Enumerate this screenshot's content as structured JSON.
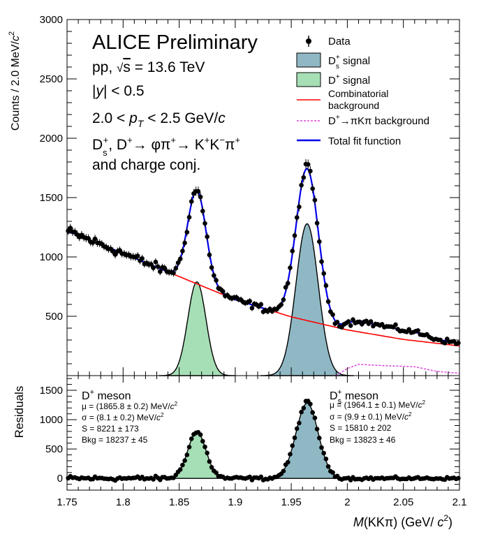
{
  "chart_data": [
    {
      "type": "scatter",
      "panel": "main",
      "ylabel": "Counts / 2.0 MeV/c²",
      "xlim": [
        1.75,
        2.1
      ],
      "ylim": [
        0,
        3000
      ],
      "yticks": [
        500,
        1000,
        1500,
        2000,
        2500,
        3000
      ],
      "annotations": {
        "title": "ALICE Preliminary",
        "collision": "pp, √s = 13.6 TeV",
        "rapidity": "|y| < 0.5",
        "pt": "2.0 < pT < 2.5 GeV/c",
        "decay": "D+s, D+→ φπ+→ K+K−π+",
        "conj": "and charge conj."
      },
      "legend": {
        "position": "top-right",
        "entries": [
          {
            "label": "Data",
            "style": "marker"
          },
          {
            "label": "D+s signal",
            "style": "fill",
            "color": "#8fb8c4"
          },
          {
            "label": "D+ signal",
            "style": "fill",
            "color": "#a6dfb5"
          },
          {
            "label": "Combinatorial background",
            "style": "line",
            "color": "#ff0000"
          },
          {
            "label": "D+→πKπ background",
            "style": "dashed",
            "color": "#dd44dd"
          },
          {
            "label": "Total fit function",
            "style": "line",
            "color": "#0000ee"
          }
        ]
      },
      "model": {
        "background_points": [
          [
            1.75,
            1220
          ],
          [
            1.8,
            1030
          ],
          [
            1.85,
            835
          ],
          [
            1.9,
            640
          ],
          [
            1.95,
            495
          ],
          [
            2.0,
            385
          ],
          [
            2.05,
            305
          ],
          [
            2.1,
            250
          ]
        ],
        "dplus_signal": {
          "mean": 1.8658,
          "sigma": 0.0081,
          "amplitude": 790
        },
        "ds_signal": {
          "mean": 1.9641,
          "sigma": 0.0099,
          "amplitude": 1280
        },
        "reflection_points": [
          [
            1.99,
            0
          ],
          [
            2.0,
            60
          ],
          [
            2.01,
            95
          ],
          [
            2.03,
            85
          ],
          [
            2.06,
            75
          ],
          [
            2.08,
            35
          ],
          [
            2.1,
            20
          ]
        ]
      }
    },
    {
      "type": "scatter",
      "panel": "residuals",
      "ylabel": "Residuals",
      "xlabel": "M(KKπ) (GeV/ c²)",
      "xlim": [
        1.75,
        2.1
      ],
      "ylim": [
        -200,
        1750
      ],
      "xticks": [
        1.75,
        1.8,
        1.85,
        1.9,
        1.95,
        2.0,
        2.05,
        2.1
      ],
      "ytick_values": [
        0,
        500,
        1000,
        1500
      ],
      "dplus": {
        "name": "D+ meson",
        "mu": "μ = (1865.8 ± 0.2) MeV/c²",
        "sigma": "σ = (8.1 ± 0.2) MeV/c²",
        "S": "S = 8221 ± 173",
        "Bkg": "Bkg = 18237 ± 45"
      },
      "ds": {
        "name": "D+s meson",
        "mu": "μ = (1964.1 ± 0.1) MeV/c²",
        "sigma": "σ = (9.9 ± 0.1) MeV/c²",
        "S": "S = 15810 ± 202",
        "Bkg": "Bkg = 13823 ± 46"
      }
    }
  ]
}
